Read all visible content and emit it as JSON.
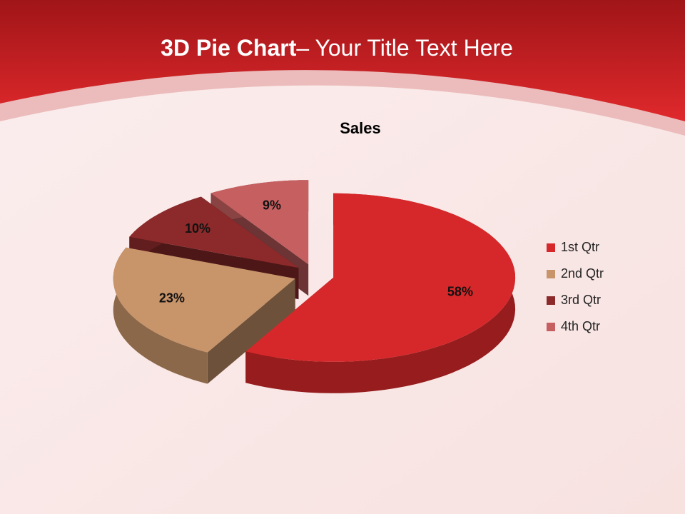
{
  "header": {
    "title": "3D Pie Chart",
    "subtitle": "– Your Title Text Here"
  },
  "chart_data": {
    "type": "pie",
    "title": "Sales",
    "categories": [
      "1st Qtr",
      "2nd Qtr",
      "3rd Qtr",
      "4th Qtr"
    ],
    "values": [
      58,
      23,
      10,
      9
    ],
    "value_labels": [
      "58%",
      "23%",
      "10%",
      "9%"
    ],
    "colors": [
      "#d6282a",
      "#c8946a",
      "#8c2a2b",
      "#c55f60"
    ],
    "legend": "right"
  }
}
